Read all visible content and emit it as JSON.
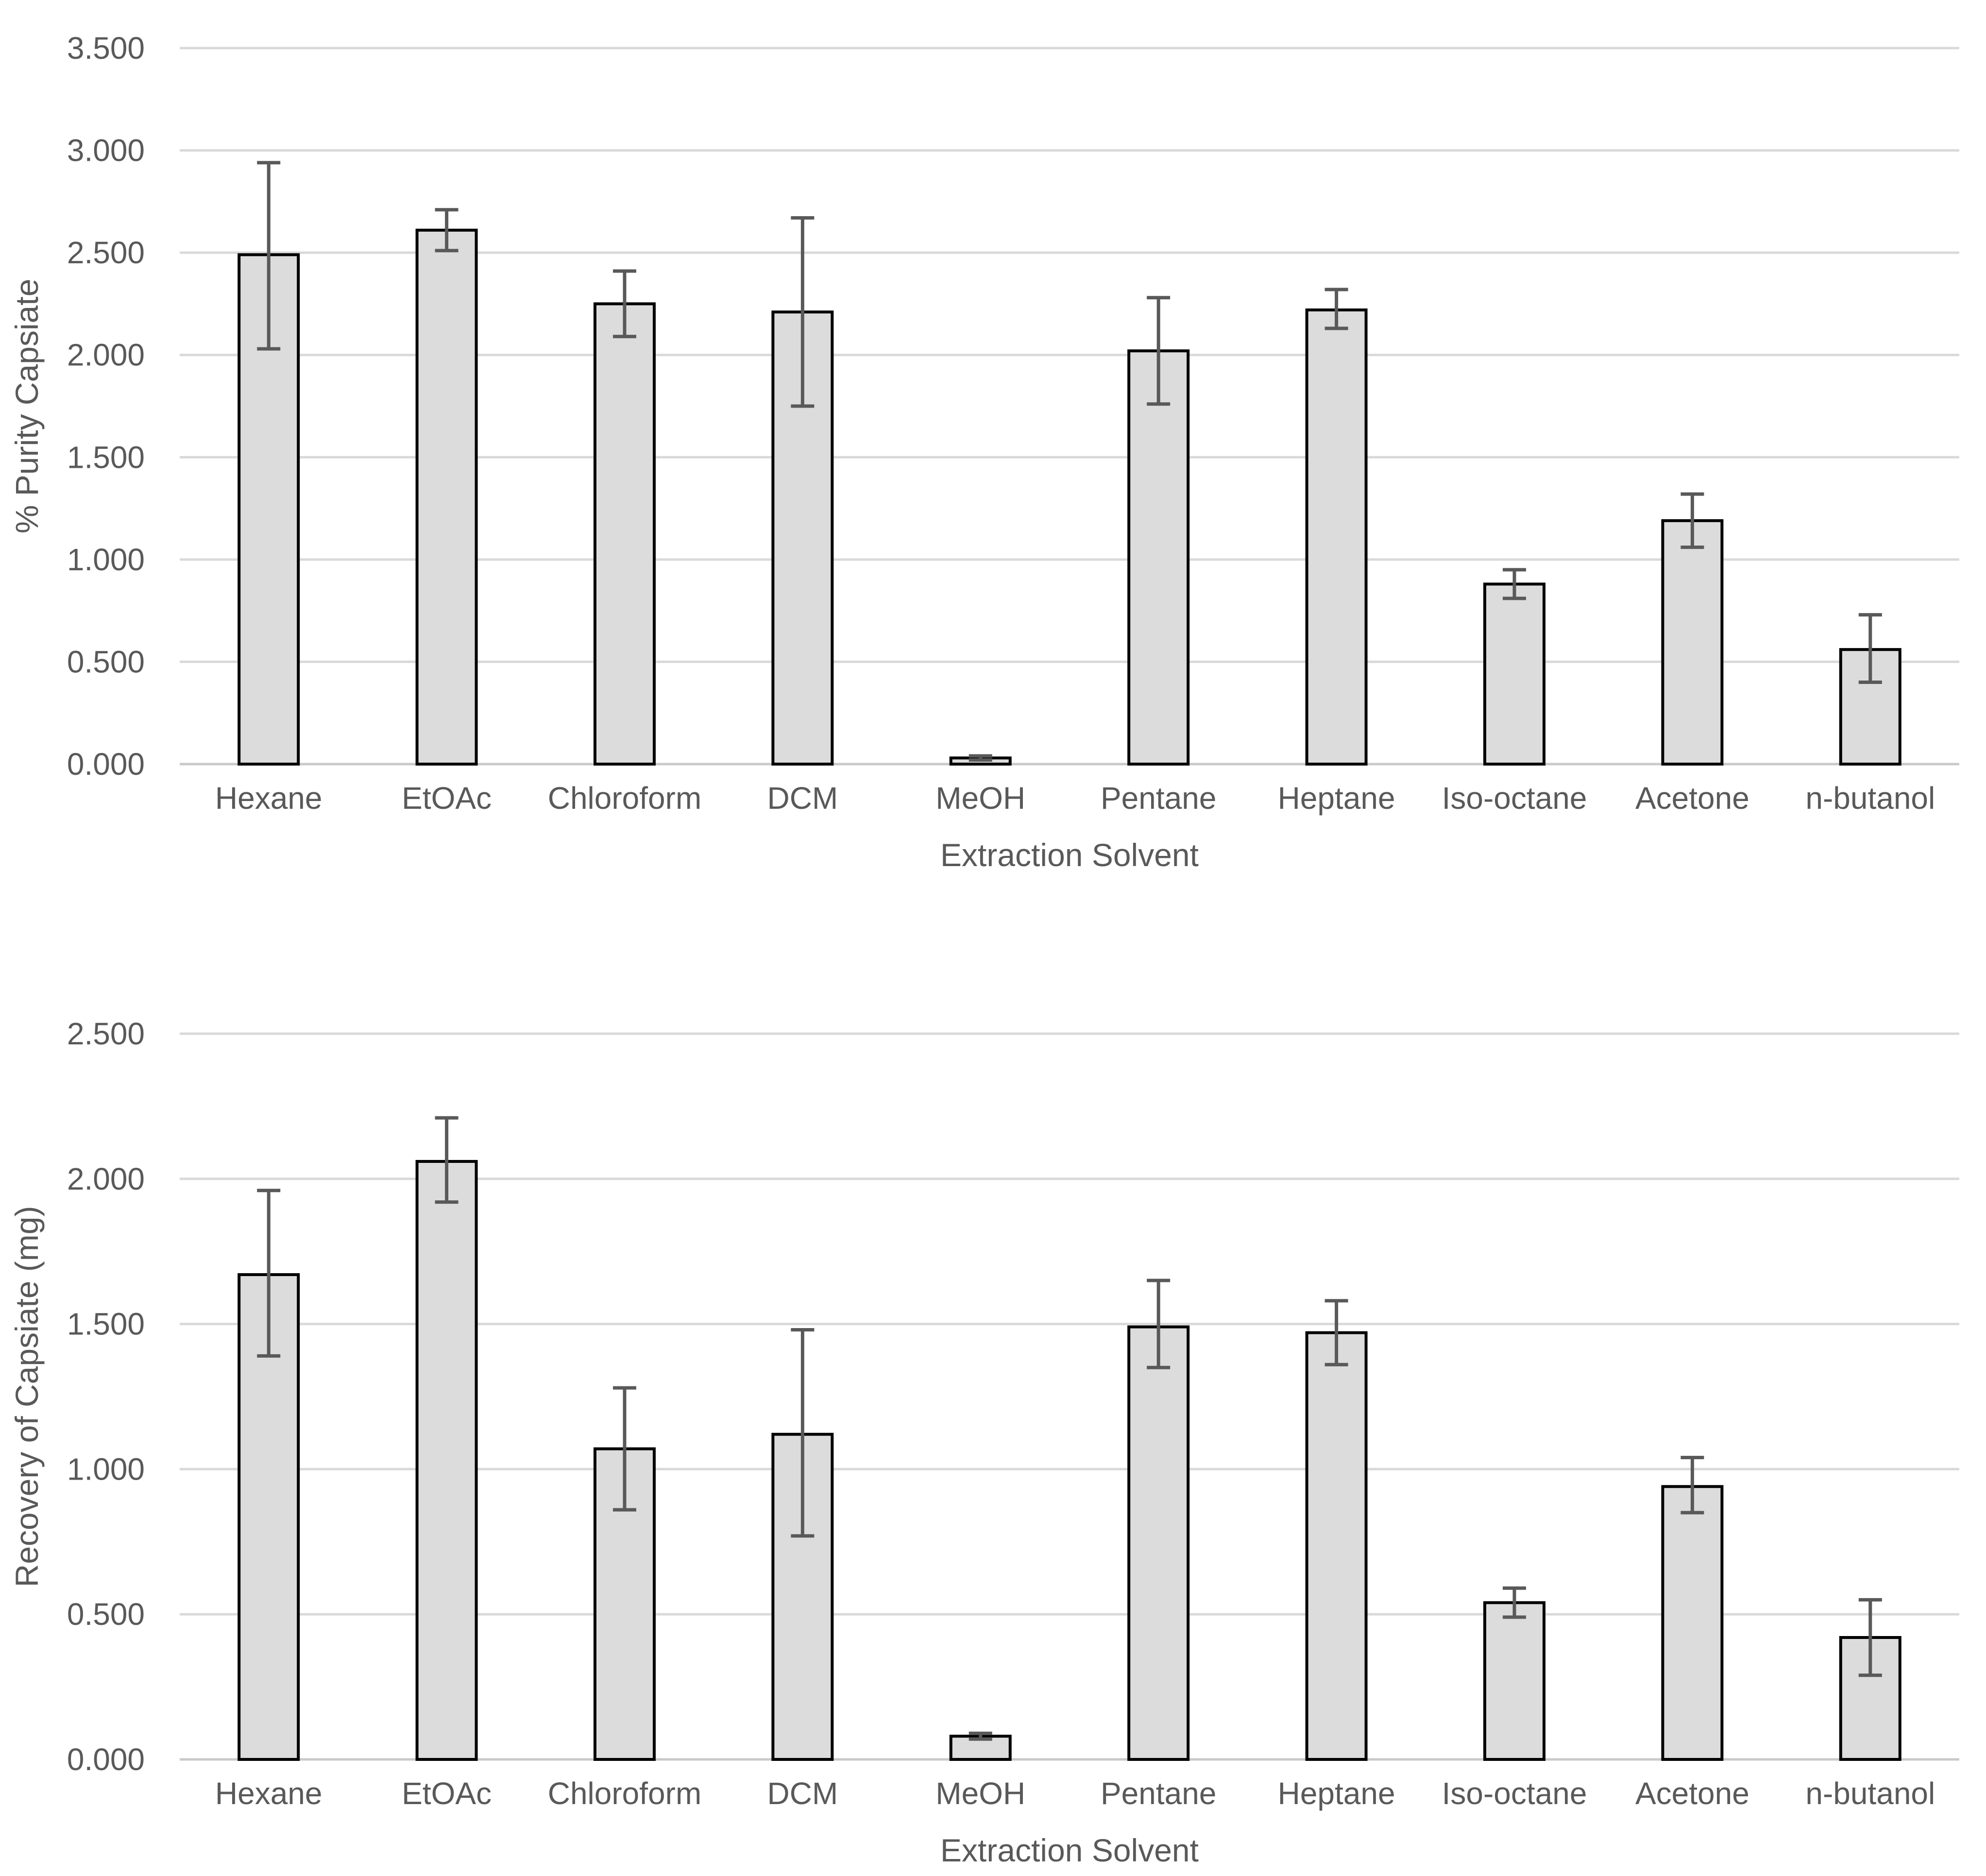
{
  "figure": {
    "background": "#ffffff",
    "style": {
      "bar_fill": "#dcdcdc",
      "bar_stroke": "#000000",
      "error_color": "#595959",
      "grid_color": "#d9d9d9",
      "axis_line_color": "#c9c9c9",
      "text_color": "#595959"
    }
  },
  "chart_data": [
    {
      "type": "bar",
      "title": "",
      "xlabel": "Extraction Solvent",
      "ylabel": "% Purity Capsiate",
      "categories": [
        "Hexane",
        "EtOAc",
        "Chloroform",
        "DCM",
        "MeOH",
        "Pentane",
        "Heptane",
        "Iso-octane",
        "Acetone",
        "n-butanol"
      ],
      "values": [
        2.49,
        2.61,
        2.25,
        2.21,
        0.03,
        2.02,
        2.22,
        0.88,
        1.19,
        0.56
      ],
      "error_low": [
        2.03,
        2.51,
        2.09,
        1.75,
        0.02,
        1.76,
        2.13,
        0.81,
        1.06,
        0.4
      ],
      "error_high": [
        2.94,
        2.71,
        2.41,
        2.67,
        0.04,
        2.28,
        2.32,
        0.95,
        1.32,
        0.73
      ],
      "ylim": [
        0,
        3.5
      ],
      "ystep": 0.5,
      "tick_labels": [
        "0.000",
        "0.500",
        "1.000",
        "1.500",
        "2.000",
        "2.500",
        "3.000",
        "3.500"
      ],
      "grid": true,
      "legend": "none"
    },
    {
      "type": "bar",
      "title": "",
      "xlabel": "Extraction Solvent",
      "ylabel": "Recovery of Capsiate (mg)",
      "categories": [
        "Hexane",
        "EtOAc",
        "Chloroform",
        "DCM",
        "MeOH",
        "Pentane",
        "Heptane",
        "Iso-octane",
        "Acetone",
        "n-butanol"
      ],
      "values": [
        1.67,
        2.06,
        1.07,
        1.12,
        0.08,
        1.49,
        1.47,
        0.54,
        0.94,
        0.42
      ],
      "error_low": [
        1.39,
        1.92,
        0.86,
        0.77,
        0.07,
        1.35,
        1.36,
        0.49,
        0.85,
        0.29
      ],
      "error_high": [
        1.96,
        2.21,
        1.28,
        1.48,
        0.09,
        1.65,
        1.58,
        0.59,
        1.04,
        0.55
      ],
      "ylim": [
        0,
        2.5
      ],
      "ystep": 0.5,
      "tick_labels": [
        "0.000",
        "0.500",
        "1.000",
        "1.500",
        "2.000",
        "2.500"
      ],
      "grid": true,
      "legend": "none"
    }
  ]
}
